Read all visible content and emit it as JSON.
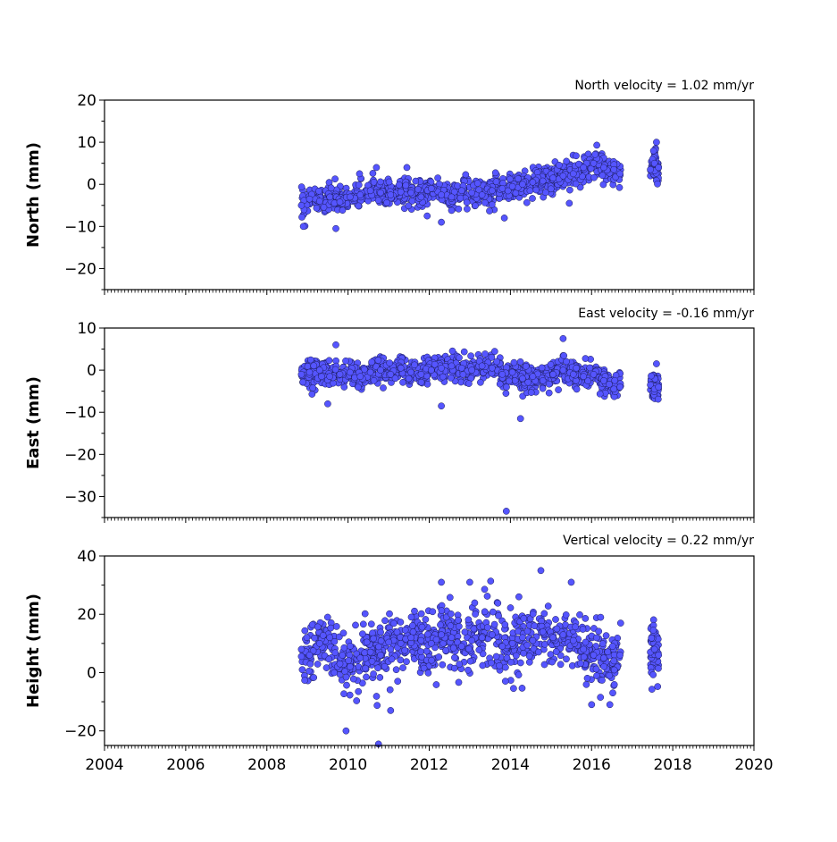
{
  "colors": {
    "marker_fill": "#5555ff",
    "marker_edge": "#1a1a55",
    "axis": "#000000",
    "background": "#ffffff"
  },
  "chart_data": [
    {
      "type": "scatter",
      "panel": "north",
      "title": "North velocity = 1.02 mm/yr",
      "ylabel": "North (mm)",
      "xlim": [
        2004,
        2020
      ],
      "ylim": [
        -25,
        20
      ],
      "xticks": [
        2004,
        2006,
        2008,
        2010,
        2012,
        2014,
        2016,
        2018,
        2020
      ],
      "xtick_labels": [],
      "yticks": [
        -20,
        -10,
        0,
        10,
        20
      ],
      "ytick_labels": [
        "−20",
        "−10",
        "0",
        "10",
        "20"
      ],
      "grid": false,
      "x": [
        2008.85,
        2009.05,
        2009.3,
        2009.55,
        2009.8,
        2010.05,
        2010.3,
        2010.55,
        2010.8,
        2011.05,
        2011.3,
        2011.55,
        2011.8,
        2012.05,
        2012.3,
        2012.55,
        2012.8,
        2013.05,
        2013.3,
        2013.55,
        2013.8,
        2014.05,
        2014.3,
        2014.55,
        2014.8,
        2015.05,
        2015.3,
        2015.55,
        2015.8,
        2016.05,
        2016.3,
        2016.55,
        2016.7,
        2017.45,
        2017.55,
        2017.65,
        2008.9,
        2009.7,
        2010.7,
        2011.45,
        2011.95,
        2012.3,
        2013.85,
        2015.45,
        2017.6
      ],
      "y": [
        -5.0,
        -3.5,
        -4.0,
        -3.0,
        -4.2,
        -3.0,
        -2.5,
        -1.5,
        -2.0,
        -2.5,
        -1.8,
        -2.0,
        -3.0,
        -1.0,
        -2.5,
        -3.0,
        -1.5,
        -2.0,
        -2.5,
        -1.5,
        -1.0,
        -0.5,
        0.0,
        0.5,
        0.8,
        1.5,
        2.0,
        2.5,
        4.0,
        5.0,
        4.0,
        3.5,
        2.5,
        3.5,
        5.0,
        4.0,
        -10.0,
        -10.5,
        4.0,
        4.0,
        -7.5,
        -9.0,
        -8.0,
        -4.5,
        10.0
      ]
    },
    {
      "type": "scatter",
      "panel": "east",
      "title": "East velocity = -0.16 mm/yr",
      "ylabel": "East (mm)",
      "xlim": [
        2004,
        2020
      ],
      "ylim": [
        -35,
        10
      ],
      "xticks": [
        2004,
        2006,
        2008,
        2010,
        2012,
        2014,
        2016,
        2018,
        2020
      ],
      "xtick_labels": [],
      "yticks": [
        -30,
        -20,
        -10,
        0,
        10
      ],
      "ytick_labels": [
        "−30",
        "−20",
        "−10",
        "0",
        "10"
      ],
      "grid": false,
      "x": [
        2008.85,
        2009.05,
        2009.3,
        2009.55,
        2009.8,
        2010.05,
        2010.3,
        2010.55,
        2010.8,
        2011.05,
        2011.3,
        2011.55,
        2011.8,
        2012.05,
        2012.3,
        2012.55,
        2012.8,
        2013.05,
        2013.3,
        2013.55,
        2013.8,
        2014.05,
        2014.3,
        2014.55,
        2014.8,
        2015.05,
        2015.3,
        2015.55,
        2015.8,
        2016.05,
        2016.3,
        2016.55,
        2016.7,
        2017.45,
        2017.55,
        2017.65,
        2009.7,
        2009.5,
        2012.3,
        2013.9,
        2014.25,
        2015.3,
        2017.6
      ],
      "y": [
        -1.0,
        -0.5,
        0.0,
        -1.5,
        -1.0,
        -0.5,
        -1.5,
        -0.5,
        0.0,
        -1.0,
        0.5,
        -0.5,
        -1.0,
        0.0,
        0.5,
        1.0,
        0.5,
        0.0,
        1.0,
        0.5,
        -1.0,
        -0.5,
        -2.0,
        -1.5,
        -2.5,
        -1.0,
        0.0,
        -1.0,
        -1.5,
        -1.0,
        -2.5,
        -4.5,
        -4.0,
        -3.5,
        -4.5,
        -4.0,
        6.0,
        -8.0,
        -8.5,
        -33.5,
        -11.5,
        7.5,
        1.5
      ]
    },
    {
      "type": "scatter",
      "panel": "height",
      "title": "Vertical velocity = 0.22 mm/yr",
      "ylabel": "Height (mm)",
      "xlim": [
        2004,
        2020
      ],
      "ylim": [
        -25,
        40
      ],
      "xticks": [
        2004,
        2006,
        2008,
        2010,
        2012,
        2014,
        2016,
        2018,
        2020
      ],
      "xtick_labels": [
        "2004",
        "2006",
        "2008",
        "2010",
        "2012",
        "2014",
        "2016",
        "2018",
        "2020"
      ],
      "yticks": [
        -20,
        0,
        20,
        40
      ],
      "ytick_labels": [
        "−20",
        "0",
        "20",
        "40"
      ],
      "grid": false,
      "x": [
        2008.85,
        2009.05,
        2009.3,
        2009.55,
        2009.8,
        2010.05,
        2010.3,
        2010.55,
        2010.8,
        2011.05,
        2011.3,
        2011.55,
        2011.8,
        2012.05,
        2012.3,
        2012.55,
        2012.8,
        2013.05,
        2013.3,
        2013.55,
        2013.8,
        2014.05,
        2014.3,
        2014.55,
        2014.8,
        2015.05,
        2015.3,
        2015.55,
        2015.8,
        2016.05,
        2016.3,
        2016.55,
        2016.7,
        2017.45,
        2017.55,
        2017.65,
        2009.95,
        2010.75,
        2011.05,
        2014.75,
        2015.5,
        2013.0,
        2012.3,
        2016.0,
        2016.45
      ],
      "y": [
        8.0,
        6.0,
        10.0,
        12.0,
        3.0,
        2.0,
        5.0,
        7.0,
        6.0,
        8.0,
        10.0,
        12.0,
        11.0,
        10.0,
        13.0,
        12.0,
        9.0,
        11.0,
        12.0,
        13.0,
        9.0,
        10.0,
        12.0,
        11.0,
        14.0,
        12.0,
        13.0,
        11.0,
        8.0,
        6.0,
        5.0,
        4.0,
        6.0,
        7.0,
        8.0,
        6.0,
        -20.0,
        -24.5,
        -13.0,
        35.0,
        31.0,
        31.0,
        31.0,
        -11.0,
        -11.0
      ]
    }
  ]
}
